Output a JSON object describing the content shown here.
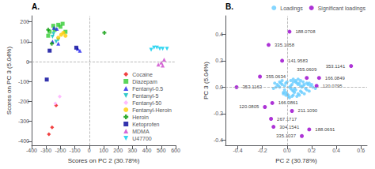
{
  "chart_data": [
    {
      "type": "scatter",
      "title": "A.",
      "xlabel": "Scores on PC 2 (30.78%)",
      "ylabel": "Scores on PC 3 (5.04%)",
      "xlim": [
        -400,
        600
      ],
      "ylim": [
        -420,
        230
      ],
      "xticks": [
        -400,
        -300,
        -200,
        -100,
        0,
        100,
        200,
        300,
        400,
        500,
        600
      ],
      "yticks": [
        -400,
        -300,
        -200,
        -100,
        0,
        100,
        200
      ],
      "grid": false,
      "legend": "lower right",
      "series": [
        {
          "name": "Cocaine",
          "color": "#ee1111",
          "marker": "diamond",
          "values": [
            [
              -280,
              -365
            ],
            [
              -258,
              -330
            ],
            [
              -230,
              -220
            ]
          ]
        },
        {
          "name": "Diazepam",
          "color": "#33cc33",
          "marker": "square",
          "values": [
            [
              -285,
              130
            ],
            [
              -275,
              150
            ],
            [
              -250,
              180
            ],
            [
              -240,
              160
            ],
            [
              -215,
              185
            ],
            [
              -200,
              175
            ],
            [
              -185,
              190
            ],
            [
              -165,
              150
            ]
          ]
        },
        {
          "name": "Fentanyl-0.5",
          "color": "#2222ee",
          "marker": "triangle",
          "values": [
            [
              -255,
              100
            ],
            [
              -245,
              170
            ],
            [
              -225,
              165
            ],
            [
              -215,
              90
            ],
            [
              -80,
              65
            ],
            [
              -65,
              55
            ]
          ]
        },
        {
          "name": "Fentanyl-5",
          "color": "#00bbbb",
          "marker": "triangle_down",
          "values": [
            [
              -255,
              125
            ],
            [
              -248,
              140
            ],
            [
              -230,
              100
            ],
            [
              -215,
              110
            ]
          ]
        },
        {
          "name": "Fentanyl-50",
          "color": "#ffaaff",
          "marker": "diamond",
          "values": [
            [
              -235,
              -210
            ],
            [
              -205,
              -175
            ]
          ]
        },
        {
          "name": "Fentanyl-Heroin",
          "color": "#ffcc00",
          "marker": "circle",
          "values": [
            [
              -215,
              120
            ],
            [
              -195,
              135
            ],
            [
              -180,
              145
            ],
            [
              -165,
              130
            ]
          ]
        },
        {
          "name": "Heroin",
          "color": "#009900",
          "marker": "plus",
          "values": [
            [
              -285,
              160
            ],
            [
              -260,
              90
            ],
            [
              105,
              145
            ]
          ]
        },
        {
          "name": "Ketoprofen",
          "color": "#000099",
          "marker": "square",
          "values": [
            [
              -295,
              -90
            ],
            [
              -275,
              55
            ],
            [
              -90,
              70
            ]
          ]
        },
        {
          "name": "MDMA",
          "color": "#cc44cc",
          "marker": "triangle",
          "values": [
            [
              480,
              -15
            ],
            [
              500,
              -5
            ],
            [
              520,
              10
            ],
            [
              510,
              -20
            ]
          ]
        },
        {
          "name": "U47700",
          "color": "#00ccee",
          "marker": "triangle_down",
          "values": [
            [
              430,
              60
            ],
            [
              450,
              70
            ],
            [
              470,
              70
            ],
            [
              490,
              65
            ],
            [
              510,
              65
            ],
            [
              540,
              65
            ]
          ]
        }
      ]
    },
    {
      "type": "scatter",
      "title": "B.",
      "xlabel": "PC 2 (30.78%)",
      "ylabel": "PC 3 (5.04%)",
      "xlim": [
        -0.5,
        0.65
      ],
      "ylim": [
        -0.44,
        0.54
      ],
      "xticks": [
        -0.4,
        -0.2,
        {
          "value": 0,
          "label": "0.0"
        },
        0.2,
        0.4,
        0.6
      ],
      "yticks": [
        -0.4,
        -0.2,
        {
          "value": 0,
          "label": "0.0"
        },
        0.2,
        0.4
      ],
      "grid": false,
      "legend": "upper right",
      "series": [
        {
          "name": "Loadings",
          "color": "#66ccff",
          "marker": "circle",
          "values": [
            [
              0.04,
              0.02
            ],
            [
              0.03,
              0.01
            ],
            [
              -0.01,
              0.03
            ],
            [
              0.07,
              0.04
            ],
            [
              0.09,
              0.02
            ],
            [
              0.06,
              -0.01
            ],
            [
              0.11,
              0.01
            ],
            [
              0.08,
              0.03
            ],
            [
              0.04,
              -0.02
            ],
            [
              0.05,
              0.04
            ],
            [
              0.1,
              0.03
            ],
            [
              0.12,
              0.0
            ],
            [
              0.14,
              0.02
            ],
            [
              0.05,
              -0.03
            ],
            [
              0.02,
              0.0
            ],
            [
              -0.02,
              0.01
            ],
            [
              0.0,
              0.04
            ],
            [
              0.06,
              -0.04
            ],
            [
              0.09,
              -0.05
            ],
            [
              0.07,
              -0.02
            ],
            [
              0.05,
              -0.06
            ],
            [
              0.03,
              -0.01
            ],
            [
              0.13,
              0.01
            ],
            [
              0.15,
              -0.01
            ],
            [
              0.11,
              -0.03
            ],
            [
              0.17,
              0.02
            ],
            [
              0.19,
              0.01
            ],
            [
              0.16,
              -0.02
            ],
            [
              0.21,
              0.0
            ],
            [
              0.18,
              0.03
            ],
            [
              0.23,
              -0.01
            ],
            [
              0.2,
              0.02
            ],
            [
              0.03,
              0.05
            ],
            [
              0.05,
              0.06
            ],
            [
              -0.04,
              0.02
            ],
            [
              -0.06,
              0.0
            ],
            [
              -0.02,
              -0.02
            ],
            [
              -0.05,
              0.03
            ],
            [
              -0.07,
              0.01
            ],
            [
              -0.09,
              0.0
            ],
            [
              -0.03,
              -0.04
            ],
            [
              -0.08,
              0.02
            ],
            [
              -0.11,
              -0.01
            ],
            [
              -0.1,
              0.03
            ],
            [
              0.0,
              -0.05
            ],
            [
              0.01,
              -0.06
            ],
            [
              -0.01,
              -0.04
            ],
            [
              0.01,
              -0.07
            ],
            [
              0.02,
              -0.08
            ],
            [
              -0.01,
              -0.06
            ],
            [
              0.04,
              -0.07
            ],
            [
              -0.03,
              -0.05
            ],
            [
              0.08,
              -0.07
            ],
            [
              0.1,
              -0.06
            ],
            [
              0.12,
              -0.04
            ],
            [
              0.14,
              -0.05
            ],
            [
              0.07,
              0.05
            ],
            [
              0.09,
              0.06
            ],
            [
              0.11,
              0.05
            ],
            [
              0.13,
              0.04
            ],
            [
              -0.04,
              0.05
            ],
            [
              -0.06,
              0.04
            ],
            [
              0.16,
              0.03
            ],
            [
              0.18,
              -0.03
            ]
          ]
        },
        {
          "name": "Significant loadings",
          "color": "#9900cc",
          "marker": "circle",
          "values": [
            [
              0.02,
              0.42
            ],
            [
              -0.15,
              0.32
            ],
            [
              -0.04,
              0.2
            ],
            [
              0.52,
              0.16
            ],
            [
              -0.22,
              0.08
            ],
            [
              0.16,
              0.07
            ],
            [
              0.26,
              0.07
            ],
            [
              -0.41,
              0.0
            ],
            [
              0.24,
              0.01
            ],
            [
              -0.12,
              -0.12
            ],
            [
              -0.18,
              -0.15
            ],
            [
              0.04,
              -0.18
            ],
            [
              -0.13,
              -0.24
            ],
            [
              -0.11,
              -0.3
            ],
            [
              0.18,
              -0.32
            ],
            [
              0.12,
              -0.37
            ]
          ],
          "labels": [
            "188.0708",
            "335.1058",
            "141.9583",
            "353.1141",
            "355.0634",
            "355.0609",
            "166.0849",
            "353.1163",
            "120.0795",
            "166.0861",
            "120.0805",
            "211.1090",
            "267.1717",
            "304.1541",
            "188.0691",
            "335.1037"
          ]
        }
      ]
    }
  ]
}
